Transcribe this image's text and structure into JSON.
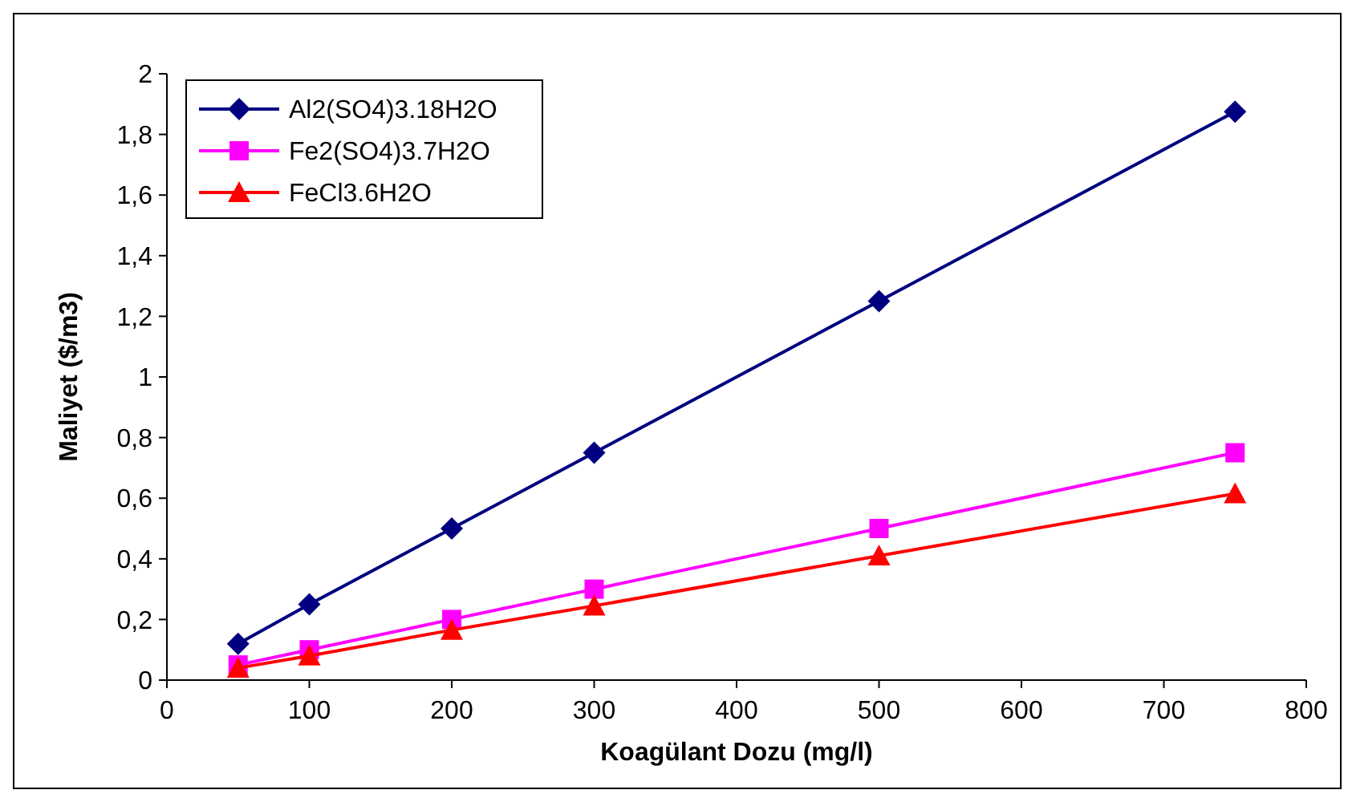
{
  "chart_data": {
    "type": "line",
    "xlabel": "Koagülant Dozu (mg/l)",
    "ylabel": "Maliyet ($/m3)",
    "x": [
      50,
      100,
      200,
      300,
      500,
      750
    ],
    "series": [
      {
        "name": "Al2(SO4)3.18H2O",
        "color": "#000080",
        "marker": "diamond",
        "values": [
          0.12,
          0.25,
          0.5,
          0.75,
          1.25,
          1.875
        ]
      },
      {
        "name": "Fe2(SO4)3.7H2O",
        "color": "#ff00ff",
        "marker": "square",
        "values": [
          0.05,
          0.1,
          0.2,
          0.3,
          0.5,
          0.75
        ]
      },
      {
        "name": "FeCl3.6H2O",
        "color": "#ff0000",
        "marker": "triangle",
        "values": [
          0.04,
          0.08,
          0.165,
          0.245,
          0.41,
          0.615
        ]
      }
    ],
    "xlim": [
      0,
      800
    ],
    "xticks": [
      0,
      100,
      200,
      300,
      400,
      500,
      600,
      700,
      800
    ],
    "ylim": [
      0,
      2
    ],
    "yticks": [
      0,
      {
        "value": 0.2,
        "label": "0,2"
      },
      {
        "value": 0.4,
        "label": "0,4"
      },
      {
        "value": 0.6,
        "label": "0,6"
      },
      {
        "value": 0.8,
        "label": "0,8"
      },
      1,
      {
        "value": 1.2,
        "label": "1,2"
      },
      {
        "value": 1.4,
        "label": "1,4"
      },
      {
        "value": 1.6,
        "label": "1,6"
      },
      {
        "value": 1.8,
        "label": "1,8"
      },
      2
    ],
    "grid": false,
    "legend": "top left",
    "line_style": "solid"
  }
}
